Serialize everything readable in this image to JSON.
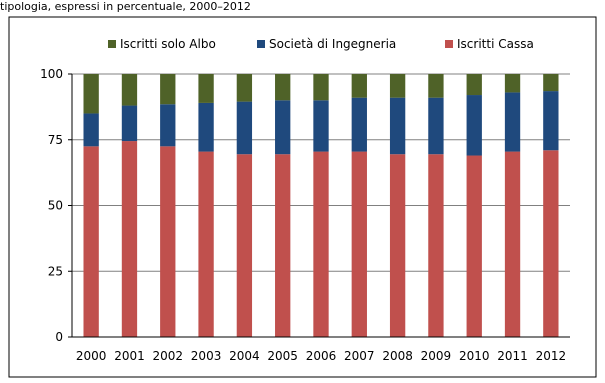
{
  "top_caption": "tipologia, espressi in percentuale, 2000–2012",
  "chart_data": {
    "type": "bar",
    "stacked": true,
    "categories": [
      "2000",
      "2001",
      "2002",
      "2003",
      "2004",
      "2005",
      "2006",
      "2007",
      "2008",
      "2009",
      "2010",
      "2011",
      "2012"
    ],
    "series": [
      {
        "name": "Iscritti Cassa",
        "color": "#c0504d",
        "values": [
          72.5,
          74.5,
          72.5,
          70.5,
          69.5,
          69.5,
          70.5,
          70.5,
          69.5,
          69.5,
          69.0,
          70.5,
          71.0
        ]
      },
      {
        "name": "Società di Ingegneria",
        "color": "#1f497d",
        "values": [
          12.5,
          13.5,
          16.0,
          18.5,
          20.0,
          20.5,
          19.5,
          20.5,
          21.5,
          21.5,
          23.0,
          22.5,
          22.5
        ]
      },
      {
        "name": "Iscritti solo Albo",
        "color": "#4f6228",
        "values": [
          15.0,
          12.0,
          11.5,
          11.0,
          10.5,
          10.0,
          10.0,
          9.0,
          9.0,
          9.0,
          8.0,
          7.0,
          6.5
        ]
      }
    ],
    "legend_order": [
      "Iscritti solo Albo",
      "Società di Ingegneria",
      "Iscritti Cassa"
    ],
    "legend_position": "top",
    "ylim": [
      0,
      100
    ],
    "yticks": [
      "0",
      "25",
      "50",
      "75",
      "100"
    ],
    "grid": true
  }
}
